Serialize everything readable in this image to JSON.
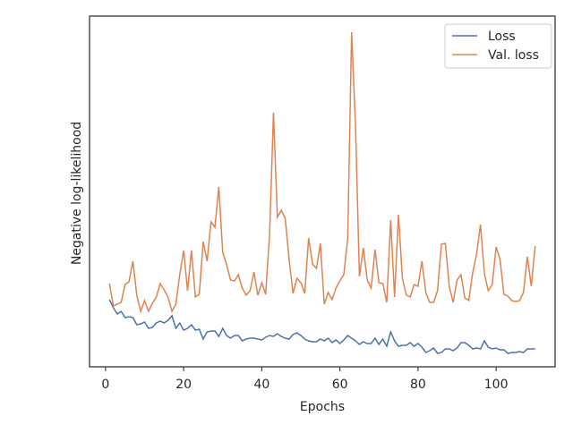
{
  "chart_data": {
    "type": "line",
    "x_label": "Epochs",
    "y_label": "Negative log-likelihood",
    "x": [
      1,
      2,
      3,
      4,
      5,
      6,
      7,
      8,
      9,
      10,
      11,
      12,
      13,
      14,
      15,
      16,
      17,
      18,
      19,
      20,
      21,
      22,
      23,
      24,
      25,
      26,
      27,
      28,
      29,
      30,
      31,
      32,
      33,
      34,
      35,
      36,
      37,
      38,
      39,
      40,
      41,
      42,
      43,
      44,
      45,
      46,
      47,
      48,
      49,
      50,
      51,
      52,
      53,
      54,
      55,
      56,
      57,
      58,
      59,
      60,
      61,
      62,
      63,
      64,
      65,
      66,
      67,
      68,
      69,
      70,
      71,
      72,
      73,
      74,
      75,
      76,
      77,
      78,
      79,
      80,
      81,
      82,
      83,
      84,
      85,
      86,
      87,
      88,
      89,
      90,
      91,
      92,
      93,
      94,
      95,
      96,
      97,
      98,
      99,
      100,
      101,
      102,
      103,
      104,
      105,
      106,
      107,
      108,
      109,
      110
    ],
    "series": [
      {
        "name": "Loss",
        "color": "#4c72b0",
        "values": [
          75,
          66,
          59,
          62,
          55,
          56,
          55,
          47,
          48,
          50,
          43,
          44,
          49,
          51,
          49,
          52,
          57,
          43,
          49,
          41,
          43,
          47,
          41,
          42,
          31,
          39,
          40,
          40,
          34,
          43,
          35,
          32,
          35,
          35,
          29,
          31,
          32,
          32,
          31,
          30,
          33,
          35,
          34,
          37,
          34,
          32,
          31,
          36,
          38,
          35,
          31,
          29,
          28,
          28,
          31,
          29,
          32,
          27,
          30,
          26,
          30,
          35,
          32,
          29,
          25,
          28,
          26,
          26,
          32,
          25,
          31,
          23,
          39,
          29,
          23,
          24,
          24,
          27,
          23,
          26,
          22,
          16,
          18,
          21,
          15,
          16,
          20,
          20,
          18,
          21,
          27,
          27,
          24,
          20,
          21,
          20,
          29,
          22,
          20,
          21,
          19,
          19,
          15,
          16,
          16,
          17,
          16,
          20,
          20,
          20
        ]
      },
      {
        "name": "Val. loss",
        "color": "#dd8452",
        "values": [
          93,
          68,
          70,
          72,
          92,
          95,
          118,
          80,
          62,
          74,
          62,
          71,
          78,
          93,
          86,
          78,
          62,
          70,
          103,
          130,
          85,
          130,
          78,
          81,
          140,
          118,
          162,
          156,
          201,
          128,
          114,
          97,
          96,
          103,
          88,
          80,
          85,
          106,
          80,
          94,
          81,
          148,
          284,
          167,
          175,
          166,
          120,
          82,
          99,
          94,
          82,
          144,
          115,
          110,
          138,
          70,
          83,
          75,
          88,
          96,
          103,
          143,
          374,
          270,
          101,
          133,
          97,
          88,
          131,
          94,
          93,
          72,
          164,
          78,
          170,
          99,
          80,
          78,
          92,
          90,
          118,
          83,
          72,
          72,
          85,
          137,
          138,
          90,
          72,
          97,
          103,
          77,
          74,
          105,
          126,
          159,
          104,
          85,
          92,
          134,
          120,
          81,
          79,
          74,
          73,
          74,
          83,
          123,
          90,
          135
        ]
      }
    ],
    "xlim": [
      -4.1,
      115.1
    ],
    "xticks": [
      0,
      20,
      40,
      60,
      80,
      100
    ],
    "ylim": [
      0,
      392
    ],
    "legend": "upper right"
  }
}
